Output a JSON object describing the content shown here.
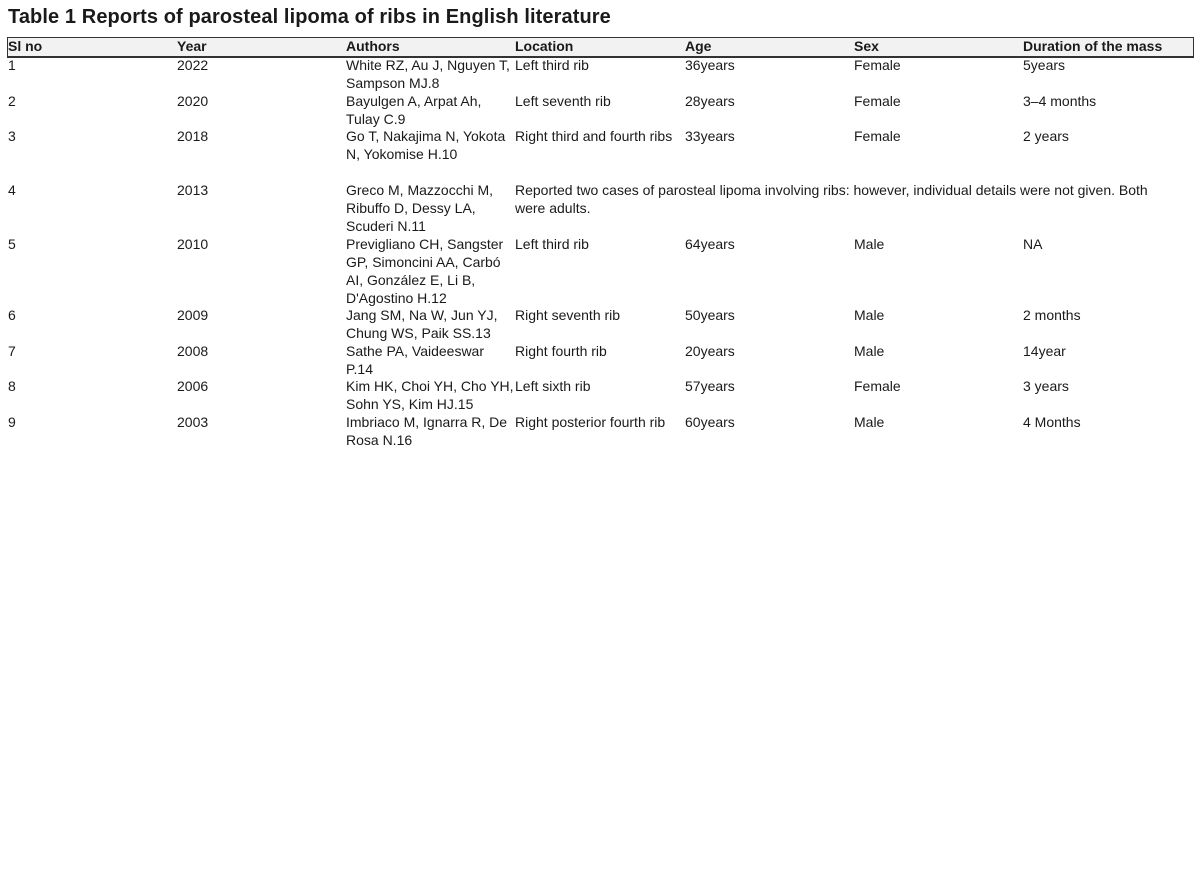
{
  "title": "Table 1 Reports of parosteal lipoma of ribs in English literature",
  "headers": [
    "Sl no",
    "Year",
    "Authors",
    "Location",
    "Age",
    "Sex",
    "Duration of the mass"
  ],
  "rows": [
    {
      "sl": "1",
      "year": "2022",
      "authors": "White RZ, Au J, Nguyen T, Sampson MJ.8",
      "location": "Left third rib",
      "age": "36years",
      "sex": "Female",
      "duration": "5years"
    },
    {
      "sl": "2",
      "year": "2020",
      "authors": "Bayulgen A, Arpat Ah, Tulay C.9",
      "location": "Left seventh rib",
      "age": "28years",
      "sex": "Female",
      "duration": "3–4 months"
    },
    {
      "sl": "3",
      "year": "2018",
      "authors": "Go T, Nakajima N, Yokota N, Yokomise H.10",
      "location": "Right third and fourth ribs",
      "age": "33years",
      "sex": "Female",
      "duration": "2 years"
    },
    {
      "sl": "4",
      "year": "2013",
      "authors": "Greco M, Mazzocchi M, Ribuffo D, Dessy LA, Scuderi N.11",
      "note": "Reported two cases of parosteal lipoma involving ribs: however, individual details were not given. Both were adults."
    },
    {
      "sl": "5",
      "year": "2010",
      "authors": "Previgliano CH, Sangster GP, Simoncini AA, Carbó AI, González E, Li B, D'Agostino H.12",
      "location": "Left third rib",
      "age": "64years",
      "sex": "Male",
      "duration": "NA"
    },
    {
      "sl": "6",
      "year": "2009",
      "authors": "Jang SM, Na W, Jun YJ, Chung WS, Paik SS.13",
      "location": "Right seventh rib",
      "age": "50years",
      "sex": "Male",
      "duration": "2 months"
    },
    {
      "sl": "7",
      "year": "2008",
      "authors": "Sathe PA, Vaideeswar P.14",
      "location": "Right fourth rib",
      "age": "20years",
      "sex": "Male",
      "duration": "14year"
    },
    {
      "sl": "8",
      "year": "2006",
      "authors": "Kim HK, Choi YH, Cho YH, Sohn YS, Kim HJ.15",
      "location": "Left sixth rib",
      "age": "57years",
      "sex": "Female",
      "duration": "3 years"
    },
    {
      "sl": "9",
      "year": "2003",
      "authors": "Imbriaco M, Ignarra R, De Rosa N.16",
      "location": "Right posterior fourth rib",
      "age": "60years",
      "sex": "Male",
      "duration": "4 Months"
    }
  ]
}
